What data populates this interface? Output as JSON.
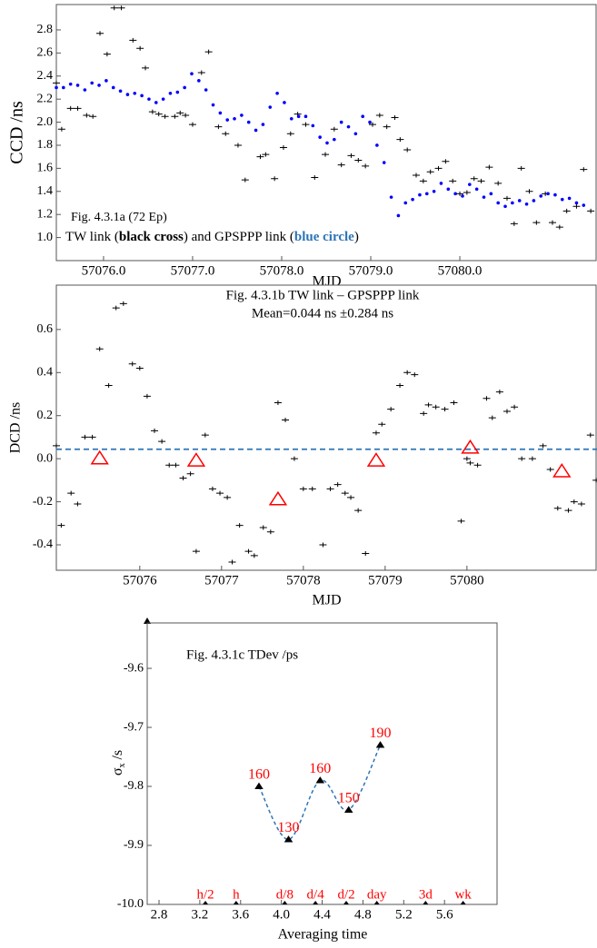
{
  "chart_data": [
    {
      "type": "scatter",
      "title": "Fig. 4.3.1a  (72 Ep)",
      "note_parts": [
        "TW link (",
        "black cross",
        ") and GPSPPP link (",
        "blue circle",
        ")"
      ],
      "xlabel": "MJD",
      "ylabel": "CCD /ns",
      "xlim": [
        57075.47,
        57081.54
      ],
      "ylim": [
        0.8,
        3.02
      ],
      "xticks": [
        {
          "value": 57076,
          "label": "57076.0"
        },
        {
          "value": 57077,
          "label": "57077.0"
        },
        {
          "value": 57078,
          "label": "57078.0"
        },
        {
          "value": 57079,
          "label": "57079.0"
        },
        {
          "value": 57080,
          "label": "57080.0"
        }
      ],
      "yticks": [
        {
          "value": 1,
          "label": "1.0"
        },
        1.2,
        1.4,
        1.6,
        1.8,
        {
          "value": 2,
          "label": "2.0"
        },
        2.2,
        2.4,
        2.6,
        2.8
      ],
      "series": [
        {
          "marker": "cross",
          "color": "#000000",
          "x": [
            57075.47,
            57075.53,
            57075.63,
            57075.71,
            57075.81,
            57075.88,
            57075.96,
            57076.04,
            57076.12,
            57076.2,
            57076.33,
            57076.41,
            57076.47,
            57076.55,
            57076.62,
            57076.69,
            57076.8,
            57076.86,
            57076.92,
            57077.0,
            57077.1,
            57077.18,
            57077.29,
            57077.37,
            57077.51,
            57077.59,
            57077.76,
            57077.82,
            57077.92,
            57078.02,
            57078.1,
            57078.18,
            57078.27,
            57078.37,
            57078.49,
            57078.59,
            57078.67,
            57078.78,
            57078.86,
            57078.94,
            57079.02,
            57079.1,
            57079.18,
            57079.27,
            57079.33,
            57079.41,
            57079.51,
            57079.59,
            57079.67,
            57079.76,
            57079.84,
            57079.92,
            57080.0,
            57080.08,
            57080.16,
            57080.24,
            57080.33,
            57080.43,
            57080.53,
            57080.61,
            57080.69,
            57080.78,
            57080.86,
            57080.96,
            57081.04,
            57081.12,
            57081.2,
            57081.31,
            57081.39,
            57081.47
          ],
          "y": [
            2.34,
            1.94,
            2.12,
            2.12,
            2.06,
            2.05,
            2.77,
            2.59,
            2.99,
            2.99,
            2.71,
            2.64,
            2.47,
            2.09,
            2.07,
            2.05,
            2.05,
            2.08,
            2.06,
            1.98,
            2.43,
            2.61,
            1.96,
            1.9,
            1.8,
            1.5,
            1.7,
            1.72,
            1.51,
            1.78,
            1.9,
            2.07,
            1.98,
            1.52,
            1.72,
            1.94,
            1.63,
            1.71,
            1.67,
            1.62,
            1.98,
            2.06,
            1.96,
            2.04,
            1.85,
            1.76,
            1.54,
            1.49,
            1.57,
            1.6,
            1.66,
            1.49,
            1.38,
            1.39,
            1.51,
            1.49,
            1.61,
            1.47,
            1.34,
            1.12,
            1.6,
            1.4,
            1.13,
            1.38,
            1.13,
            1.09,
            1.23,
            1.27,
            1.59,
            1.23
          ]
        },
        {
          "marker": "dot",
          "color": "#0000ff",
          "x": [
            57075.47,
            57075.55,
            57075.63,
            57075.71,
            57075.79,
            57075.87,
            57075.95,
            57076.03,
            57076.11,
            57076.19,
            57076.27,
            57076.35,
            57076.43,
            57076.51,
            57076.59,
            57076.67,
            57076.75,
            57076.83,
            57076.91,
            57076.99,
            57077.07,
            57077.15,
            57077.23,
            57077.31,
            57077.39,
            57077.47,
            57077.55,
            57077.63,
            57077.71,
            57077.79,
            57077.87,
            57077.95,
            57078.03,
            57078.11,
            57078.19,
            57078.27,
            57078.35,
            57078.43,
            57078.51,
            57078.59,
            57078.67,
            57078.75,
            57078.83,
            57078.91,
            57078.99,
            57079.07,
            57079.15,
            57079.23,
            57079.31,
            57079.39,
            57079.47,
            57079.55,
            57079.63,
            57079.71,
            57079.79,
            57079.87,
            57079.95,
            57080.03,
            57080.11,
            57080.19,
            57080.27,
            57080.35,
            57080.43,
            57080.51,
            57080.59,
            57080.67,
            57080.75,
            57080.83,
            57080.91,
            57080.99,
            57081.07,
            57081.15,
            57081.23,
            57081.31,
            57081.39
          ],
          "y": [
            2.3,
            2.3,
            2.33,
            2.32,
            2.28,
            2.34,
            2.32,
            2.36,
            2.3,
            2.27,
            2.24,
            2.25,
            2.23,
            2.2,
            2.17,
            2.2,
            2.25,
            2.26,
            2.3,
            2.42,
            2.36,
            2.28,
            2.15,
            2.08,
            2.02,
            2.03,
            2.06,
            2.0,
            1.93,
            1.98,
            2.13,
            2.25,
            2.17,
            2.03,
            2.05,
            2.05,
            1.97,
            1.87,
            1.82,
            1.85,
            2.0,
            1.96,
            1.9,
            2.05,
            2.0,
            1.8,
            1.65,
            1.35,
            1.19,
            1.3,
            1.33,
            1.37,
            1.38,
            1.4,
            1.47,
            1.42,
            1.38,
            1.36,
            1.46,
            1.42,
            1.35,
            1.38,
            1.3,
            1.27,
            1.3,
            1.32,
            1.29,
            1.32,
            1.36,
            1.38,
            1.37,
            1.33,
            1.34,
            1.3,
            1.28
          ]
        }
      ]
    },
    {
      "type": "scatter",
      "title": "Fig. 4.3.1b TW link – GPSPPP link",
      "subtitle": "Mean=0.044 ns ±0.284 ns",
      "xlabel": "MJD",
      "ylabel": "DCD /ns",
      "xlim": [
        57074.98,
        57081.59
      ],
      "ylim": [
        -0.518,
        0.806
      ],
      "xticks": [
        57076,
        57077,
        57078,
        57079,
        57080
      ],
      "yticks": [
        -0.4,
        -0.2,
        {
          "value": 0,
          "label": "0.0"
        },
        0.2,
        0.4,
        0.6
      ],
      "mean_line": {
        "value": 0.044,
        "color": "#2e75b6"
      },
      "series": [
        {
          "marker": "cross",
          "color": "#000000",
          "x": [
            57074.98,
            57075.04,
            57075.16,
            57075.24,
            57075.33,
            57075.42,
            57075.51,
            57075.62,
            57075.71,
            57075.8,
            57075.91,
            57076.0,
            57076.09,
            57076.18,
            57076.27,
            57076.36,
            57076.44,
            57076.53,
            57076.62,
            57076.69,
            57076.8,
            57076.89,
            57076.98,
            57077.07,
            57077.13,
            57077.22,
            57077.33,
            57077.4,
            57077.51,
            57077.6,
            57077.69,
            57077.78,
            57077.89,
            57078.0,
            57078.11,
            57078.24,
            57078.33,
            57078.42,
            57078.51,
            57078.58,
            57078.67,
            57078.76,
            57078.89,
            57078.96,
            57079.07,
            57079.18,
            57079.27,
            57079.36,
            57079.47,
            57079.53,
            57079.62,
            57079.73,
            57079.84,
            57079.93,
            57080.0,
            57080.04,
            57080.13,
            57080.24,
            57080.31,
            57080.4,
            57080.49,
            57080.58,
            57080.67,
            57080.8,
            57080.93,
            57081.02,
            57081.11,
            57081.24,
            57081.31,
            57081.4,
            57081.51,
            57081.58
          ],
          "y": [
            0.06,
            -0.31,
            -0.16,
            -0.21,
            0.1,
            0.1,
            0.51,
            0.34,
            0.7,
            0.72,
            0.44,
            0.42,
            0.29,
            0.13,
            0.08,
            -0.03,
            -0.03,
            -0.09,
            -0.07,
            -0.43,
            0.11,
            -0.14,
            -0.16,
            -0.18,
            -0.48,
            -0.31,
            -0.43,
            -0.45,
            -0.32,
            -0.34,
            0.26,
            0.18,
            0.0,
            -0.14,
            -0.14,
            -0.4,
            -0.14,
            -0.12,
            -0.16,
            -0.18,
            -0.24,
            -0.44,
            0.12,
            0.16,
            0.23,
            0.34,
            0.4,
            0.39,
            0.21,
            0.25,
            0.24,
            0.23,
            0.26,
            -0.29,
            0.0,
            -0.02,
            -0.03,
            0.28,
            0.19,
            0.31,
            0.22,
            0.24,
            0.0,
            0.0,
            0.06,
            -0.05,
            -0.23,
            -0.24,
            -0.2,
            -0.21,
            0.11,
            -0.1
          ]
        },
        {
          "marker": "triangle",
          "filled": false,
          "color": "#ff0000",
          "x": [
            57075.51,
            57076.69,
            57077.69,
            57078.89,
            57080.04,
            57081.16
          ],
          "y": [
            0.0,
            -0.01,
            -0.19,
            -0.01,
            0.05,
            -0.06
          ]
        }
      ]
    },
    {
      "type": "line",
      "title": "Fig. 4.3.1c TDev /ps",
      "xlabel": "Averaging time",
      "ylabel_parts": [
        "σ",
        "x",
        "/s"
      ],
      "xlim": [
        2.684,
        6.124
      ],
      "ylim": [
        -10,
        -9.523
      ],
      "xticks": [
        2.8,
        3.2,
        3.6,
        {
          "value": 4,
          "label": "4.0"
        },
        4.4,
        4.8,
        5.2,
        5.6
      ],
      "yticks": [
        {
          "value": -10,
          "label": "-10.0"
        },
        -9.9,
        -9.8,
        -9.7,
        -9.6
      ],
      "series": [
        {
          "marker": "triangle",
          "filled": true,
          "color": "#000000",
          "line_color": "#2e75b6",
          "label_color": "#ff0000",
          "x": [
            3.78,
            4.07,
            4.38,
            4.66,
            4.97
          ],
          "y": [
            -9.8,
            -9.89,
            -9.79,
            -9.84,
            -9.73
          ],
          "point_labels": [
            160,
            130,
            160,
            150,
            190
          ]
        }
      ],
      "time_marks": {
        "color": "#ff0000",
        "labels": [
          "h/2",
          "h",
          "d/8",
          "d/4",
          "d/2",
          "day",
          "3d",
          "wk"
        ],
        "x": [
          3.255,
          3.556,
          4.033,
          4.334,
          4.636,
          4.936,
          5.414,
          5.782
        ]
      }
    }
  ]
}
